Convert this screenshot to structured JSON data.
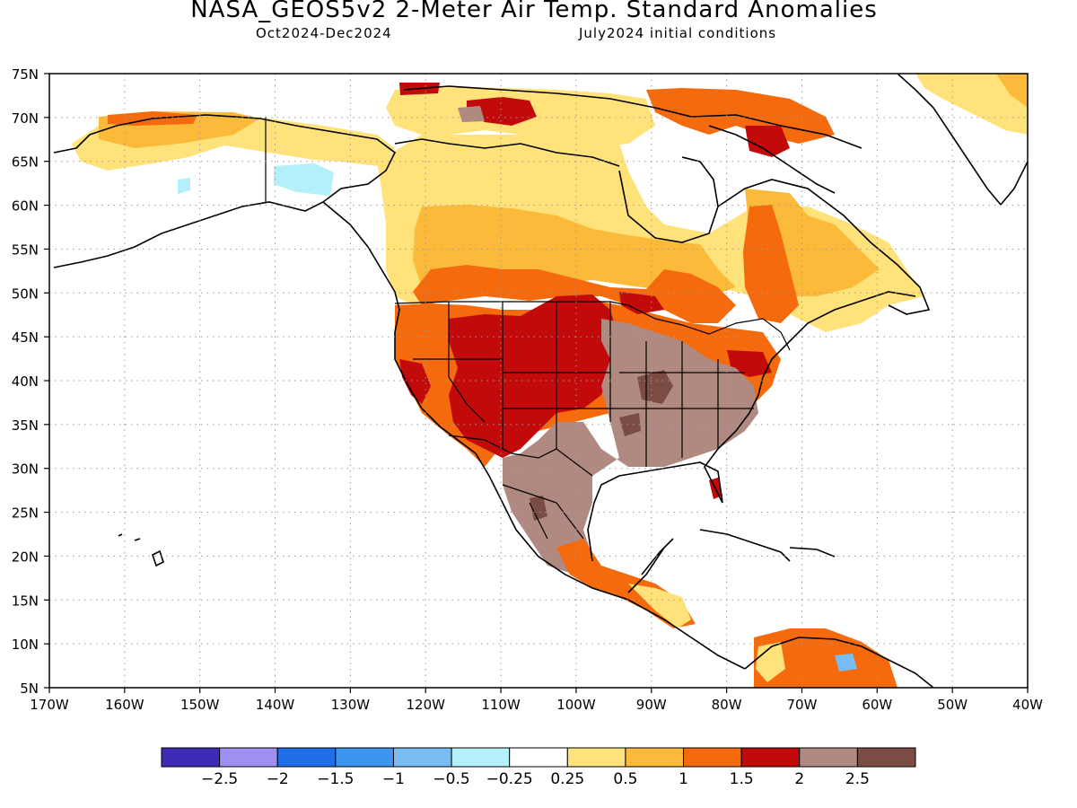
{
  "header": {
    "title": "NASA_GEOS5v2 2-Meter Air Temp. Standard Anomalies",
    "period": "Oct2024-Dec2024",
    "initial_conditions": "July2024 initial conditions"
  },
  "map": {
    "lon_range": [
      -170,
      -40
    ],
    "lat_range": [
      5,
      75
    ],
    "lat_ticks": [
      75,
      70,
      65,
      60,
      55,
      50,
      45,
      40,
      35,
      30,
      25,
      20,
      15,
      10,
      5
    ],
    "lat_labels": [
      "75N",
      "70N",
      "65N",
      "60N",
      "55N",
      "50N",
      "45N",
      "40N",
      "35N",
      "30N",
      "25N",
      "20N",
      "15N",
      "10N",
      "5N"
    ],
    "lon_ticks": [
      -170,
      -160,
      -150,
      -140,
      -130,
      -120,
      -110,
      -100,
      -90,
      -80,
      -70,
      -60,
      -50,
      -40
    ],
    "lon_labels": [
      "170W",
      "160W",
      "150W",
      "140W",
      "130W",
      "120W",
      "110W",
      "100W",
      "90W",
      "80W",
      "70W",
      "60W",
      "50W",
      "40W"
    ],
    "gridlines": "dotted"
  },
  "colorbar": {
    "colors": [
      "#3e2cb8",
      "#9e8ff2",
      "#1f6ee8",
      "#3c96f0",
      "#78bef5",
      "#b4f0fa",
      "#ffffff",
      "#ffe27a",
      "#fbba3a",
      "#f46a0c",
      "#c20a0a",
      "#b08a80",
      "#7a4c44"
    ],
    "tick_labels": [
      "-2.5",
      "-2",
      "-1.5",
      "-1",
      "-0.5",
      "-0.25",
      "0.25",
      "0.5",
      "1",
      "1.5",
      "2",
      "2.5"
    ]
  },
  "anomaly_regions": [
    {
      "name": "Southwest US and Rockies",
      "level": 2
    },
    {
      "name": "Central and Southeast US",
      "level": 2.5
    },
    {
      "name": "Mexico",
      "level": 2.5
    },
    {
      "name": "Canadian Prairies",
      "level": 1
    },
    {
      "name": "Northern Canada",
      "level": 0.5
    },
    {
      "name": "Alaska interior",
      "level": -0.25
    },
    {
      "name": "Greenland",
      "level": 0.5
    }
  ]
}
